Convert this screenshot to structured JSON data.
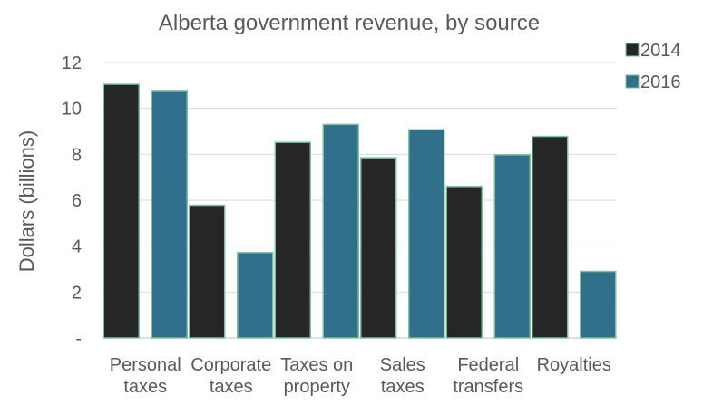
{
  "chart_data": {
    "type": "bar",
    "title": "Alberta government revenue, by source",
    "xlabel": "",
    "ylabel": "Dollars (billions)",
    "ylim": [
      0,
      12
    ],
    "yticks": [
      {
        "value": 0,
        "label": "-"
      },
      {
        "value": 2,
        "label": "2"
      },
      {
        "value": 4,
        "label": "4"
      },
      {
        "value": 6,
        "label": "6"
      },
      {
        "value": 8,
        "label": "8"
      },
      {
        "value": 10,
        "label": "10"
      },
      {
        "value": 12,
        "label": "12"
      }
    ],
    "grid": true,
    "legend_position": "top-right",
    "categories": [
      [
        "Personal",
        "taxes"
      ],
      [
        "Corporate",
        "taxes"
      ],
      [
        "Taxes on",
        "property"
      ],
      [
        "Sales",
        "taxes"
      ],
      [
        "Federal",
        "transfers"
      ],
      [
        "Royalties"
      ]
    ],
    "series": [
      {
        "name": "2014",
        "color": "#262626",
        "values": [
          11.05,
          5.78,
          8.52,
          7.85,
          6.6,
          8.78
        ]
      },
      {
        "name": "2016",
        "color": "#31708a",
        "values": [
          10.78,
          3.72,
          9.3,
          9.07,
          7.98,
          2.9
        ]
      }
    ],
    "colors": {
      "text": "#595959",
      "grid": "#d9d9d9",
      "axis": "#bfbfbf",
      "bar_outline": "#7fbf9f"
    }
  }
}
